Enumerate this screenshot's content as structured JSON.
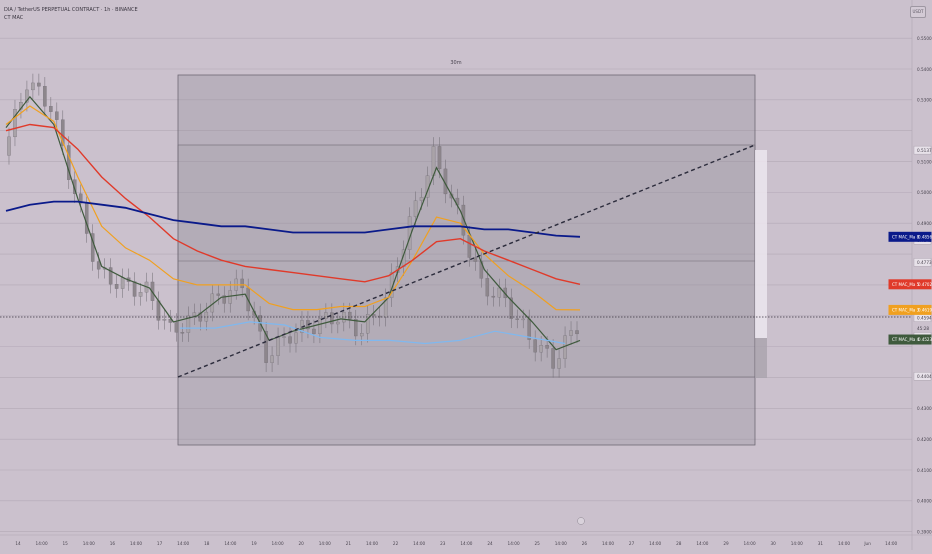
{
  "header": {
    "title": "DIA / TetherUS PERPETUAL CONTRACT · 1h · BINANCE",
    "indicator": "CT MAC",
    "currency_badge": "USDT",
    "box_label": "30m"
  },
  "colors": {
    "background": "#cbc1cd",
    "candle_up": "#a9a3a8",
    "candle_down": "#8d868c",
    "ma_green": "#3f5a3d",
    "ma_orange": "#f0a020",
    "ma_red": "#e03a2a",
    "ma_navy": "#0a1a8a",
    "ma_lightblue": "#7fb8ef",
    "trendline": "#2c2c3c",
    "box_fill": "#8a8591"
  },
  "price_axis": {
    "ticks": [
      "0.5500",
      "0.5400",
      "0.5300",
      "0.5137",
      "0.5100",
      "0.5000",
      "0.4900",
      "0.4845",
      "0.4773",
      "0.4702",
      "0.4619",
      "0.4594",
      "45:28",
      "0.4533",
      "0.4523",
      "0.4404",
      "0.4300",
      "0.4200",
      "0.4100",
      "0.4000",
      "0.3900"
    ]
  },
  "price_markers": [
    {
      "label": "CT MAC_Ma 8",
      "value": "0.4856",
      "color": "#0a1a8a"
    },
    {
      "label": "CT MAC_Ma 5",
      "value": "0.4702",
      "color": "#e03a2a"
    },
    {
      "label": "CT MAC_Ma 3",
      "value": "0.4619",
      "color": "#f0a020"
    },
    {
      "label": "CT MAC_Ma 4",
      "value": "0.4523",
      "color": "#3f5a3d"
    }
  ],
  "time_axis": {
    "ticks": [
      "14",
      "14:00",
      "15",
      "14:00",
      "16",
      "14:00",
      "17",
      "14:00",
      "18",
      "14:00",
      "19",
      "14:00",
      "20",
      "14:00",
      "21",
      "14:00",
      "22",
      "14:00",
      "23",
      "14:00",
      "24",
      "14:00",
      "25",
      "14:00",
      "26",
      "14:00",
      "27",
      "14:00",
      "28",
      "14:00",
      "29",
      "14:00",
      "30",
      "14:00",
      "31",
      "14:00",
      "Jun",
      "14:00"
    ]
  },
  "chart_data": {
    "type": "line",
    "title": "DIA / TetherUS PERPETUAL CONTRACT · 1h · BINANCE",
    "ylim": [
      0.385,
      0.552
    ],
    "x": [
      "13 14:00",
      "14",
      "14 14:00",
      "15",
      "15 14:00",
      "16",
      "16 14:00",
      "17",
      "17 14:00",
      "18",
      "18 14:00",
      "19",
      "19 14:00",
      "20",
      "20 14:00",
      "21",
      "21 14:00",
      "22",
      "22 14:00",
      "23",
      "23 14:00",
      "24",
      "24 14:00",
      "25",
      "25 14:00"
    ],
    "series": [
      {
        "name": "close",
        "values": [
          0.512,
          0.536,
          0.528,
          0.5,
          0.474,
          0.47,
          0.468,
          0.455,
          0.459,
          0.466,
          0.47,
          0.447,
          0.454,
          0.457,
          0.46,
          0.455,
          0.465,
          0.49,
          0.512,
          0.493,
          0.47,
          0.465,
          0.453,
          0.445,
          0.457
        ]
      },
      {
        "name": "CT MAC_Ma 4",
        "values": [
          0.521,
          0.531,
          0.522,
          0.498,
          0.476,
          0.472,
          0.469,
          0.458,
          0.46,
          0.466,
          0.467,
          0.452,
          0.455,
          0.457,
          0.459,
          0.458,
          0.466,
          0.488,
          0.508,
          0.494,
          0.475,
          0.466,
          0.458,
          0.449,
          0.452
        ]
      },
      {
        "name": "CT MAC_Ma 3",
        "values": [
          0.522,
          0.528,
          0.523,
          0.505,
          0.489,
          0.482,
          0.478,
          0.472,
          0.47,
          0.47,
          0.47,
          0.464,
          0.462,
          0.462,
          0.463,
          0.463,
          0.466,
          0.478,
          0.492,
          0.49,
          0.48,
          0.473,
          0.468,
          0.462,
          0.4619
        ]
      },
      {
        "name": "CT MAC_Ma 5",
        "values": [
          0.52,
          0.522,
          0.521,
          0.514,
          0.505,
          0.498,
          0.492,
          0.485,
          0.481,
          0.478,
          0.476,
          0.475,
          0.474,
          0.473,
          0.472,
          0.471,
          0.473,
          0.478,
          0.484,
          0.485,
          0.481,
          0.478,
          0.475,
          0.472,
          0.4702
        ]
      },
      {
        "name": "CT MAC_Ma 8",
        "values": [
          0.494,
          0.496,
          0.497,
          0.497,
          0.496,
          0.495,
          0.493,
          0.491,
          0.49,
          0.489,
          0.489,
          0.488,
          0.487,
          0.487,
          0.487,
          0.487,
          0.488,
          0.489,
          0.489,
          0.489,
          0.488,
          0.488,
          0.487,
          0.486,
          0.4856
        ]
      }
    ],
    "annotations": [
      "30m"
    ]
  }
}
